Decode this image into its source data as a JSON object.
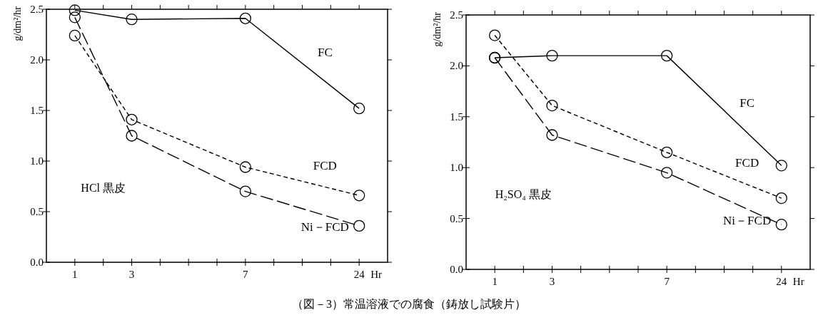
{
  "chart_data": [
    {
      "type": "line",
      "ylabel": "g/dm²/hr",
      "xlabel": "Hr",
      "categories": [
        "1",
        null,
        "3",
        null,
        null,
        null,
        "7",
        null,
        null,
        null,
        "24"
      ],
      "ylim": [
        0,
        2.5
      ],
      "yticks": [
        {
          "value": 0,
          "label": "0.0"
        },
        {
          "value": 0.5,
          "label": "0.5"
        },
        {
          "value": 1,
          "label": "1.0"
        },
        {
          "value": 1.5,
          "label": "1.5"
        },
        {
          "value": 2,
          "label": "2.0"
        },
        {
          "value": 2.5,
          "label": "2.5"
        }
      ],
      "marker": "circle",
      "legend": false,
      "grid": false,
      "series": [
        {
          "name": "FC",
          "color": "#000000",
          "line_style": "solid",
          "values": [
            2.49,
            null,
            2.4,
            null,
            null,
            null,
            2.41,
            null,
            null,
            null,
            1.52
          ]
        },
        {
          "name": "FCD",
          "color": "#000000",
          "line_style": "dashed",
          "values": [
            2.24,
            null,
            1.41,
            null,
            null,
            null,
            0.94,
            null,
            null,
            null,
            0.66
          ]
        },
        {
          "name": "Ni－FCD",
          "color": "#000000",
          "line_style": "longdash",
          "values": [
            2.42,
            null,
            1.25,
            null,
            null,
            null,
            0.7,
            null,
            null,
            null,
            0.36
          ]
        }
      ],
      "annotations": [
        "HCl 黒皮"
      ]
    },
    {
      "type": "line",
      "ylabel": "g/dm²/hr",
      "xlabel": "Hr",
      "categories": [
        "1",
        null,
        "3",
        null,
        null,
        null,
        "7",
        null,
        null,
        null,
        "24"
      ],
      "ylim": [
        0,
        2.5
      ],
      "yticks": [
        {
          "value": 0,
          "label": "0.0"
        },
        {
          "value": 0.5,
          "label": "0.5"
        },
        {
          "value": 1,
          "label": "1.0"
        },
        {
          "value": 1.5,
          "label": "1.5"
        },
        {
          "value": 2,
          "label": "2.0"
        },
        {
          "value": 2.5,
          "label": "2.5"
        }
      ],
      "marker": "circle",
      "legend": false,
      "grid": false,
      "series": [
        {
          "name": "FC",
          "color": "#000000",
          "line_style": "solid",
          "values": [
            2.08,
            null,
            2.1,
            null,
            null,
            null,
            2.1,
            null,
            null,
            null,
            1.02
          ]
        },
        {
          "name": "FCD",
          "color": "#000000",
          "line_style": "dashed",
          "values": [
            2.3,
            null,
            1.61,
            null,
            null,
            null,
            1.15,
            null,
            null,
            null,
            0.7
          ]
        },
        {
          "name": "Ni－FCD",
          "color": "#000000",
          "line_style": "longdash",
          "values": [
            2.08,
            null,
            1.32,
            null,
            null,
            null,
            0.95,
            null,
            null,
            null,
            0.44
          ]
        }
      ],
      "annotations": [
        "H₂SO₄ 黒皮",
        "（図－3）常温溶液での腐食（鋳放し試験片）"
      ]
    }
  ]
}
